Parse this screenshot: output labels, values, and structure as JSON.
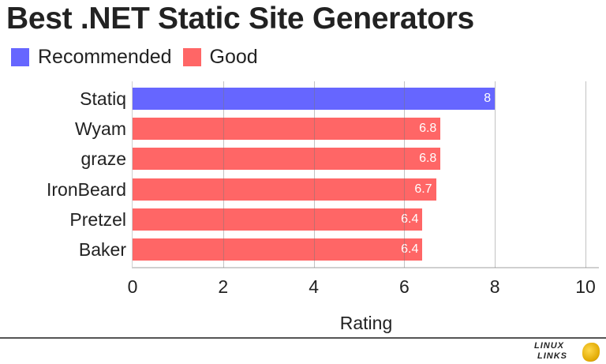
{
  "title": "Best .NET Static Site Generators",
  "legend": [
    {
      "label": "Recommended",
      "color": "#6666ff"
    },
    {
      "label": "Good",
      "color": "#ff6666"
    }
  ],
  "chart_data": {
    "type": "bar",
    "orientation": "horizontal",
    "title": "Best .NET Static Site Generators",
    "xlabel": "Rating",
    "ylabel": "",
    "xlim": [
      0,
      10
    ],
    "xticks": [
      "0",
      "2",
      "4",
      "6",
      "8",
      "10"
    ],
    "grid": true,
    "legend_position": "top-left",
    "categories": [
      "Statiq",
      "Wyam",
      "graze",
      "IronBeard",
      "Pretzel",
      "Baker"
    ],
    "values": [
      8,
      6.8,
      6.8,
      6.7,
      6.4,
      6.4
    ],
    "value_labels": [
      "8",
      "6.8",
      "6.8",
      "6.7",
      "6.4",
      "6.4"
    ],
    "groups": [
      "Recommended",
      "Good",
      "Good",
      "Good",
      "Good",
      "Good"
    ],
    "colors": [
      "#6666ff",
      "#ff6666",
      "#ff6666",
      "#ff6666",
      "#ff6666",
      "#ff6666"
    ]
  },
  "footer": {
    "logo_line1": "LINUX",
    "logo_line2": "LINKS"
  }
}
